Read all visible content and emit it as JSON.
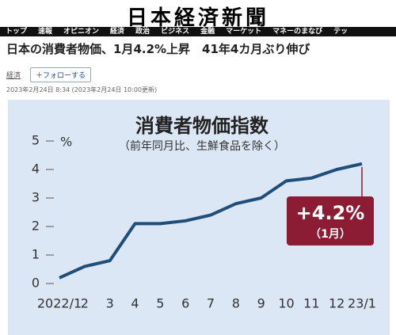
{
  "masthead": "日本経済新聞",
  "nav": [
    "トップ",
    "速報",
    "オピニオン",
    "経済",
    "政治",
    "ビジネス",
    "金融",
    "マーケット",
    "マネーのまなび",
    "テッ"
  ],
  "headline": "日本の消費者物価、1月4.2%上昇　41年4カ月ぶり伸び",
  "tag": "経済",
  "follow": "＋フォローする",
  "date": "2023年2月24日 8:34 (2023年2月24日 10:00更新)",
  "chart_data": {
    "type": "line",
    "title": "消費者物価指数",
    "subtitle": "（前年同月比、生鮮食品を除く）",
    "y_unit": "%",
    "categories": [
      "2022/1",
      "2",
      "3",
      "4",
      "5",
      "6",
      "7",
      "8",
      "9",
      "10",
      "11",
      "12",
      "23/1"
    ],
    "values": [
      0.2,
      0.6,
      0.8,
      2.1,
      2.1,
      2.2,
      2.4,
      2.8,
      3.0,
      3.6,
      3.7,
      4.0,
      4.2
    ],
    "color": "#1f4e79",
    "ylim": [
      0,
      5
    ],
    "yticks": [
      0,
      1,
      2,
      3,
      4,
      5
    ],
    "grid": false,
    "annotation": "+4.2%",
    "annotation_note": "（1月）",
    "annotation_color": "#8c1c33"
  }
}
